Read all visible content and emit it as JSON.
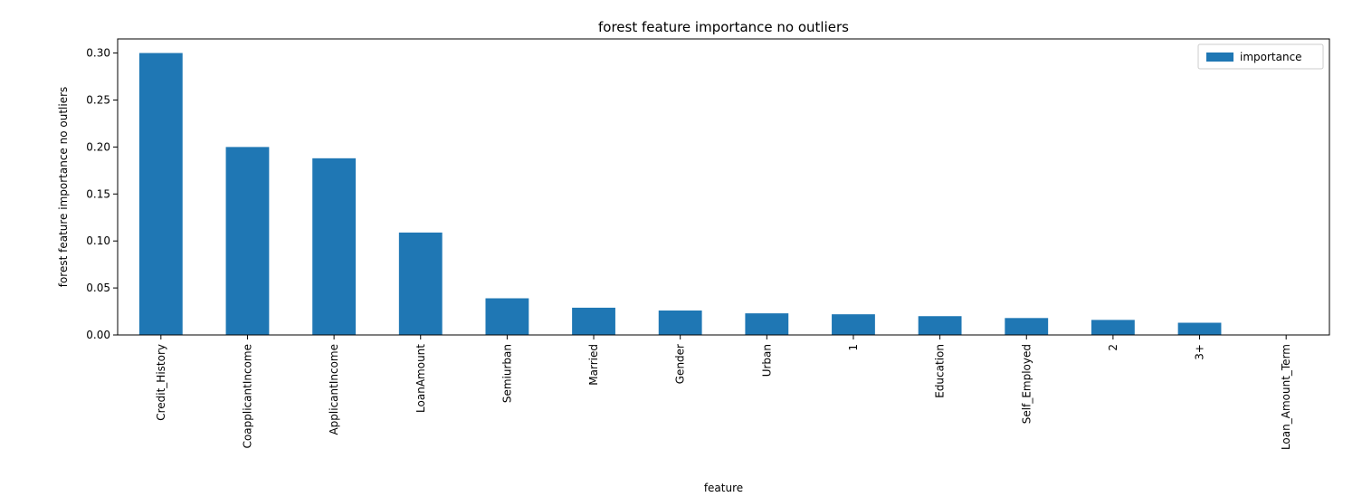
{
  "chart_data": {
    "type": "bar",
    "title": "forest feature importance no outliers",
    "xlabel": "feature",
    "ylabel": "forest feature importance no outliers",
    "categories": [
      "Credit_History",
      "CoapplicantIncome",
      "ApplicantIncome",
      "LoanAmount",
      "Semiurban",
      "Married",
      "Gender",
      "Urban",
      "1",
      "Education",
      "Self_Employed",
      "2",
      "3+",
      "Loan_Amount_Term"
    ],
    "series": [
      {
        "name": "importance",
        "values": [
          0.3,
          0.2,
          0.188,
          0.109,
          0.039,
          0.029,
          0.026,
          0.023,
          0.022,
          0.02,
          0.018,
          0.016,
          0.013,
          0.0
        ]
      }
    ],
    "ylim": [
      0,
      0.315
    ],
    "yticks": [
      0.0,
      0.05,
      0.1,
      0.15,
      0.2,
      0.25,
      0.3
    ],
    "ytick_labels": [
      "0.00",
      "0.05",
      "0.10",
      "0.15",
      "0.20",
      "0.25",
      "0.30"
    ],
    "grid": false,
    "legend_position": "top-right",
    "bar_color": "#1f77b4"
  }
}
